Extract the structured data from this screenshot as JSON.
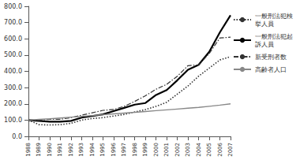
{
  "chart_data": {
    "type": "line",
    "categories": [
      "1988",
      "1989",
      "1990",
      "1991",
      "1992",
      "1993",
      "1994",
      "1995",
      "1996",
      "1997",
      "1998",
      "1999",
      "2000",
      "2001",
      "2002",
      "2003",
      "2004",
      "2005",
      "2006",
      "2007"
    ],
    "series": [
      {
        "name": "一般刑法犯検挙人員",
        "color": "#333333",
        "line_style": "dotted",
        "values": [
          100,
          72,
          70,
          72,
          80,
          100,
          110,
          115,
          125,
          135,
          150,
          165,
          185,
          210,
          260,
          310,
          370,
          420,
          470,
          490
        ]
      },
      {
        "name": "一般刑法犯起訴人員",
        "color": "#000000",
        "line_style": "solid",
        "values": [
          100,
          95,
          90,
          90,
          95,
          115,
          125,
          135,
          155,
          175,
          195,
          205,
          255,
          285,
          345,
          410,
          440,
          520,
          640,
          745
        ]
      },
      {
        "name": "新受刑者数",
        "color": "#333333",
        "line_style": "dashdot",
        "values": [
          100,
          100,
          105,
          105,
          115,
          130,
          145,
          160,
          165,
          185,
          215,
          250,
          290,
          320,
          370,
          435,
          440,
          510,
          605,
          610
        ]
      },
      {
        "name": "高齢者人口",
        "color": "#888888",
        "line_style": "solid",
        "values": [
          100,
          104,
          108,
          113,
          118,
          123,
          128,
          133,
          138,
          143,
          148,
          153,
          158,
          163,
          168,
          173,
          178,
          185,
          192,
          200
        ]
      }
    ],
    "ylim": [
      0,
      800
    ],
    "yticks": [
      {
        "value": 0,
        "label": "0.0"
      },
      {
        "value": 100,
        "label": "100.0"
      },
      {
        "value": 200,
        "label": "200.0"
      },
      {
        "value": 300,
        "label": "300.0"
      },
      {
        "value": 400,
        "label": "400.0"
      },
      {
        "value": 500,
        "label": "500.0"
      },
      {
        "value": 600,
        "label": "600.0"
      },
      {
        "value": 700,
        "label": "700.0"
      },
      {
        "value": 800,
        "label": "800.0"
      }
    ],
    "grid": false,
    "legend": "right"
  }
}
